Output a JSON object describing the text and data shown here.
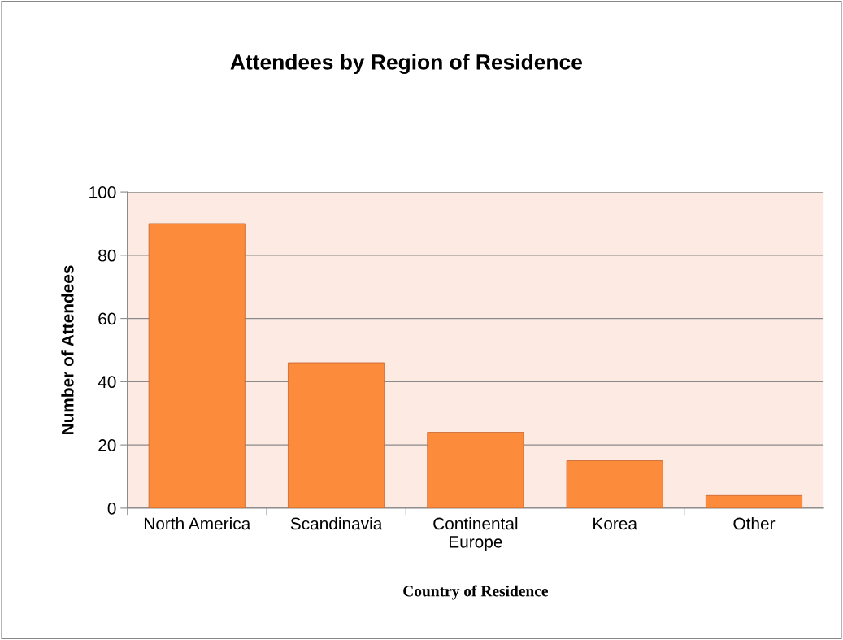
{
  "chart_data": {
    "type": "bar",
    "title": "Attendees by Region of Residence",
    "xlabel": "Country of Residence",
    "ylabel": "Number of Attendees",
    "categories": [
      "North America",
      "Scandinavia",
      "Continental\nEurope",
      "Korea",
      "Other"
    ],
    "values": [
      90,
      46,
      24,
      15,
      4
    ],
    "color": "#fd8b3c",
    "ylim": [
      0,
      100
    ],
    "yticks": [
      0,
      20,
      40,
      60,
      80,
      100
    ],
    "grid": "y"
  }
}
